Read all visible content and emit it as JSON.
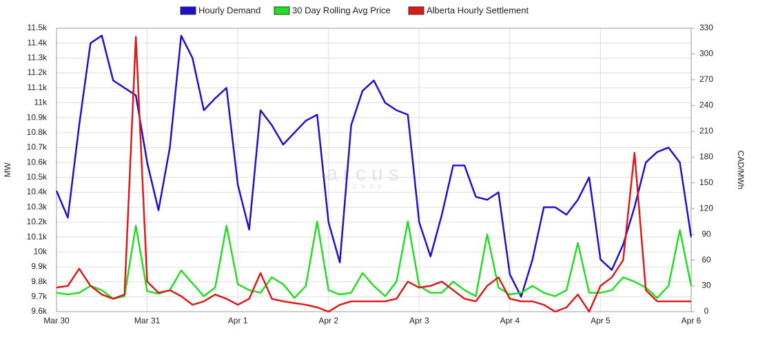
{
  "chart_data": {
    "type": "line",
    "watermark": "arcus",
    "watermark_sub": "POWER",
    "x": [
      0,
      3,
      6,
      9,
      12,
      15,
      18,
      21,
      24,
      27,
      30,
      33,
      36,
      39,
      42,
      45,
      48,
      51,
      54,
      57,
      60,
      63,
      66,
      69,
      72,
      75,
      78,
      81,
      84,
      87,
      90,
      93,
      96,
      99,
      102,
      105,
      108,
      111,
      114,
      117,
      120,
      123,
      126,
      129,
      132,
      135,
      138,
      141,
      144,
      147,
      150,
      153,
      156,
      159,
      162,
      165,
      168
    ],
    "xlim": [
      0,
      168
    ],
    "xticks": [
      {
        "value": 0,
        "label": "Mar 30"
      },
      {
        "value": 24,
        "label": "Mar 31"
      },
      {
        "value": 48,
        "label": "Apr 1"
      },
      {
        "value": 72,
        "label": "Apr 2"
      },
      {
        "value": 96,
        "label": "Apr 3"
      },
      {
        "value": 120,
        "label": "Apr 4"
      },
      {
        "value": 144,
        "label": "Apr 5"
      },
      {
        "value": 168,
        "label": "Apr 6"
      }
    ],
    "ylabel": "MW",
    "y2label": "CAD/MWh",
    "ylim": [
      9600,
      11500
    ],
    "yticks": [
      {
        "value": 9600,
        "label": "9.6k"
      },
      {
        "value": 9700,
        "label": "9.7k"
      },
      {
        "value": 9800,
        "label": "9.8k"
      },
      {
        "value": 9900,
        "label": "9.9k"
      },
      {
        "value": 10000,
        "label": "10k"
      },
      {
        "value": 10100,
        "label": "10.1k"
      },
      {
        "value": 10200,
        "label": "10.2k"
      },
      {
        "value": 10300,
        "label": "10.3k"
      },
      {
        "value": 10400,
        "label": "10.4k"
      },
      {
        "value": 10500,
        "label": "10.5k"
      },
      {
        "value": 10600,
        "label": "10.6k"
      },
      {
        "value": 10700,
        "label": "10.7k"
      },
      {
        "value": 10800,
        "label": "10.8k"
      },
      {
        "value": 10900,
        "label": "10.9k"
      },
      {
        "value": 11000,
        "label": "11k"
      },
      {
        "value": 11100,
        "label": "11.1k"
      },
      {
        "value": 11200,
        "label": "11.2k"
      },
      {
        "value": 11300,
        "label": "11.3k"
      },
      {
        "value": 11400,
        "label": "11.4k"
      },
      {
        "value": 11500,
        "label": "11.5k"
      }
    ],
    "y2lim": [
      0,
      330
    ],
    "y2ticks": [
      0,
      30,
      60,
      90,
      120,
      150,
      180,
      210,
      240,
      270,
      300,
      330
    ],
    "grid": true,
    "series": [
      {
        "name": "Hourly Demand",
        "color": "#1f0fd0",
        "axis": "y",
        "values": [
          10410,
          10230,
          10850,
          11400,
          11450,
          11150,
          11100,
          11050,
          10600,
          10280,
          10700,
          11450,
          11300,
          10950,
          11030,
          11100,
          10450,
          10150,
          10950,
          10850,
          10720,
          10800,
          10880,
          10920,
          10200,
          9930,
          10850,
          11080,
          11150,
          11000,
          10950,
          10920,
          10200,
          9970,
          10250,
          10580,
          10580,
          10370,
          10350,
          10400,
          9850,
          9700,
          9950,
          10300,
          10300,
          10250,
          10350,
          10500,
          9950,
          9880,
          10050,
          10300,
          10600,
          10670,
          10700,
          10600,
          10100
        ]
      },
      {
        "name": "30 Day Rolling Avg Price",
        "color": "#22dd22",
        "axis": "y2",
        "values": [
          22,
          20,
          22,
          30,
          25,
          15,
          18,
          100,
          24,
          21,
          25,
          48,
          33,
          18,
          28,
          100,
          32,
          25,
          22,
          40,
          32,
          16,
          30,
          105,
          25,
          20,
          22,
          45,
          30,
          18,
          35,
          105,
          30,
          22,
          22,
          35,
          25,
          18,
          90,
          28,
          20,
          22,
          30,
          22,
          18,
          25,
          80,
          22,
          22,
          25,
          40,
          35,
          28,
          16,
          30,
          95,
          30
        ]
      },
      {
        "name": "Alberta Hourly Settlement",
        "color": "#dd1a1a",
        "axis": "y2",
        "values": [
          28,
          30,
          50,
          30,
          20,
          15,
          20,
          320,
          35,
          22,
          25,
          18,
          8,
          12,
          20,
          15,
          8,
          15,
          45,
          15,
          12,
          10,
          8,
          5,
          0,
          8,
          12,
          12,
          12,
          12,
          15,
          35,
          28,
          30,
          35,
          25,
          15,
          12,
          30,
          40,
          15,
          12,
          12,
          8,
          0,
          5,
          20,
          0,
          30,
          40,
          60,
          185,
          25,
          12,
          12,
          12,
          12
        ]
      }
    ]
  }
}
